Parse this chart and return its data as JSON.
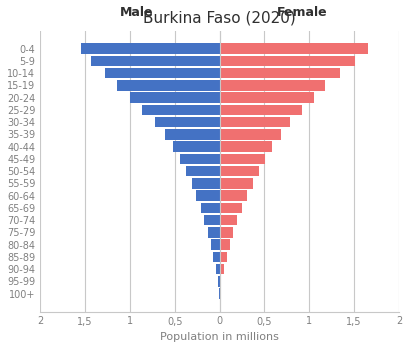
{
  "title": "Burkina Faso (2020)",
  "xlabel": "Population in millions",
  "age_groups": [
    "0-4",
    "5-9",
    "10-14",
    "15-19",
    "20-24",
    "25-29",
    "30-34",
    "35-39",
    "40-44",
    "45-49",
    "50-54",
    "55-59",
    "60-64",
    "65-69",
    "70-74",
    "75-79",
    "80-84",
    "85-89",
    "90-94",
    "95-99",
    "100+"
  ],
  "male": [
    1.55,
    1.43,
    1.28,
    1.14,
    1.0,
    0.86,
    0.72,
    0.61,
    0.52,
    0.44,
    0.37,
    0.31,
    0.26,
    0.21,
    0.17,
    0.13,
    0.1,
    0.07,
    0.04,
    0.02,
    0.01
  ],
  "female": [
    1.65,
    1.51,
    1.34,
    1.18,
    1.05,
    0.92,
    0.79,
    0.68,
    0.59,
    0.51,
    0.44,
    0.37,
    0.31,
    0.25,
    0.2,
    0.15,
    0.12,
    0.08,
    0.05,
    0.02,
    0.01
  ],
  "male_color": "#4472C4",
  "female_color": "#F07070",
  "xlim": 2.0,
  "xtick_vals": [
    -2,
    -1.5,
    -1,
    -0.5,
    0,
    0.5,
    1,
    1.5,
    2
  ],
  "xtick_labels": [
    "2",
    "1,5",
    "1",
    "0,5",
    "0",
    "0,5",
    "1",
    "1,5",
    "2"
  ],
  "grid_color": "#C8C8C8",
  "background_color": "#FFFFFF",
  "label_male": "Male",
  "label_female": "Female",
  "title_fontsize": 11,
  "axis_label_fontsize": 8,
  "tick_fontsize": 7,
  "bar_height": 0.85
}
